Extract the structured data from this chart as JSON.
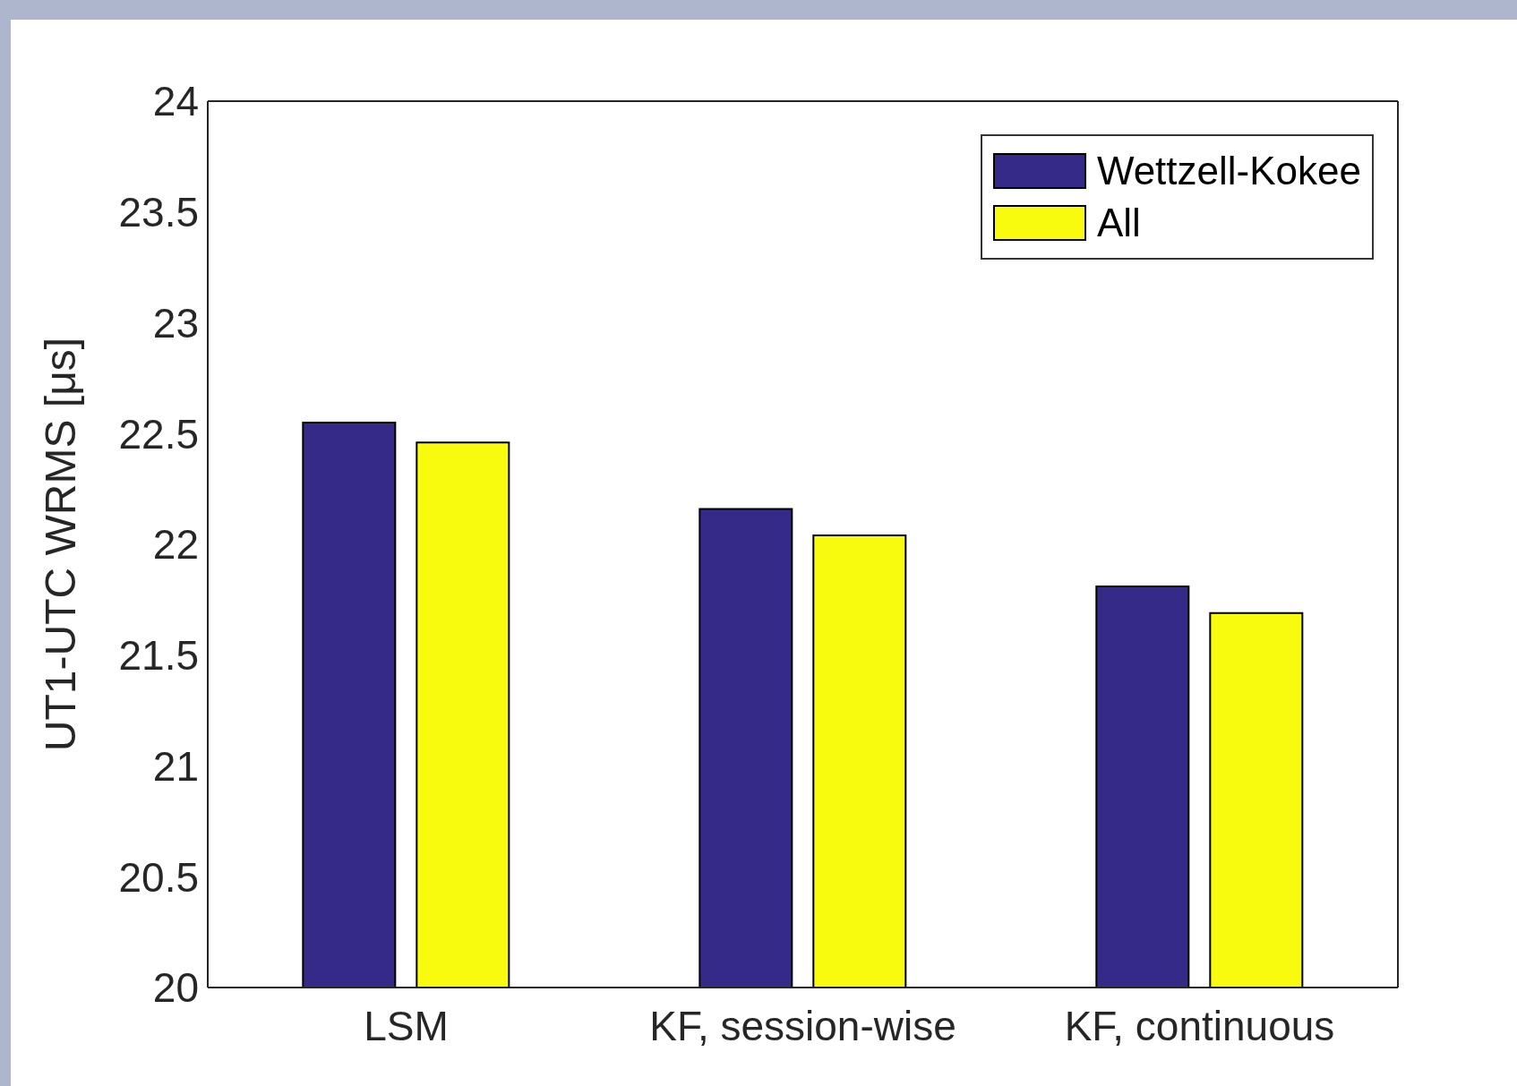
{
  "chart_data": {
    "type": "bar",
    "ylabel": "UT1-UTC WRMS [μs]",
    "categories": [
      "LSM",
      "KF, session-wise",
      "KF, continuous"
    ],
    "series": [
      {
        "name": "Wettzell-Kokee",
        "color": "#352a87",
        "values": [
          22.55,
          22.16,
          21.81
        ]
      },
      {
        "name": "All",
        "color": "#f9fb0e",
        "values": [
          22.46,
          22.04,
          21.69
        ]
      }
    ],
    "ylim": [
      20,
      24
    ],
    "yticks": [
      20,
      20.5,
      21,
      21.5,
      22,
      22.5,
      23,
      23.5,
      24
    ],
    "grid": false,
    "legend": "top right"
  }
}
